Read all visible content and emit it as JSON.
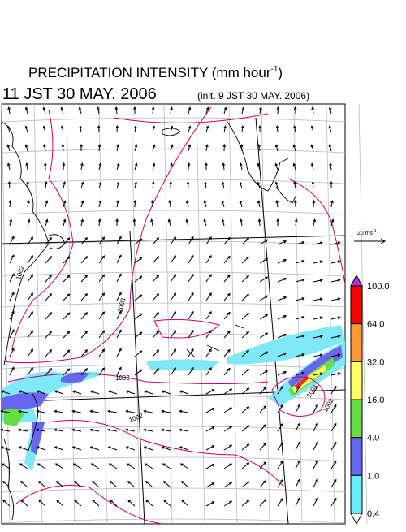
{
  "header": {
    "title": "PRECIPITATION INTENSITY (mm hour",
    "title_sup": "-1",
    "title_end": ")",
    "time": "11 JST 30 MAY. 2006",
    "init": "(init. 9 JST 30 MAY. 2006)"
  },
  "wind_scale": {
    "label": "20 ms",
    "label_sup": "-1"
  },
  "colorbar": {
    "labels": [
      "100.0",
      "64.0",
      "32.0",
      "16.0",
      "4.0",
      "1.0",
      "0.4"
    ],
    "colors": [
      "#ff0000",
      "#ff9933",
      "#ffff66",
      "#66dd44",
      "#6666ee",
      "#66eeff"
    ],
    "over_color": "#aa33dd",
    "under_color": "#ffffff"
  },
  "isobar_labels": [
    "1002",
    "1003",
    "1003",
    "1002",
    "1001",
    "1002"
  ]
}
